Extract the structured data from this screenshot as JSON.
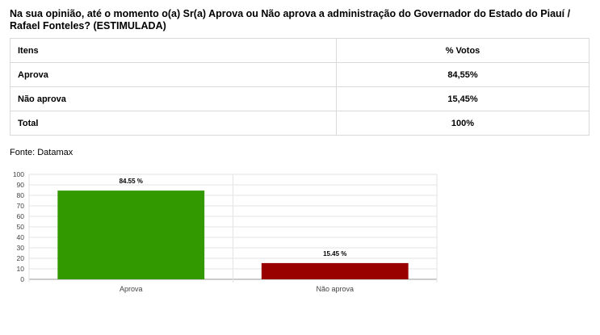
{
  "question": "Na sua opinião, até o momento o(a) Sr(a) Aprova ou Não aprova a administração do Governador do Estado do Piauí / Rafael Fonteles? (ESTIMULADA)",
  "table": {
    "headers": [
      "Itens",
      "% Votos"
    ],
    "rows": [
      [
        "Aprova",
        "84,55%"
      ],
      [
        "Não aprova",
        "15,45%"
      ],
      [
        "Total",
        "100%"
      ]
    ]
  },
  "source": "Fonte: Datamax",
  "chart_data": {
    "type": "bar",
    "categories": [
      "Aprova",
      "Não aprova"
    ],
    "values": [
      84.55,
      15.45
    ],
    "data_labels": [
      "84.55 %",
      "15.45 %"
    ],
    "colors": [
      "#339900",
      "#990000"
    ],
    "ylim": [
      0,
      100
    ],
    "yticks": [
      0,
      10,
      20,
      30,
      40,
      50,
      60,
      70,
      80,
      90,
      100
    ],
    "grid": true
  }
}
